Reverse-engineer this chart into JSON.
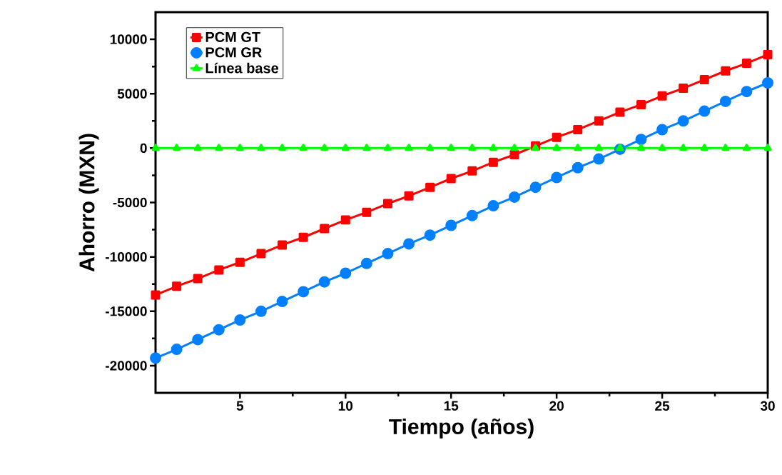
{
  "chart_data": {
    "type": "line",
    "xlabel": "Tiempo (años)",
    "ylabel": "Ahorro (MXN)",
    "x": [
      1,
      2,
      3,
      4,
      5,
      6,
      7,
      8,
      9,
      10,
      11,
      12,
      13,
      14,
      15,
      16,
      17,
      18,
      19,
      20,
      21,
      22,
      23,
      24,
      25,
      26,
      27,
      28,
      29,
      30
    ],
    "series": [
      {
        "name": "PCM GT",
        "color": "#ff0000",
        "marker": "square",
        "values": [
          -13500,
          -12700,
          -12000,
          -11200,
          -10500,
          -9700,
          -8900,
          -8200,
          -7400,
          -6600,
          -5900,
          -5100,
          -4400,
          -3600,
          -2800,
          -2100,
          -1300,
          -600,
          200,
          1000,
          1700,
          2500,
          3300,
          4000,
          4800,
          5500,
          6300,
          7100,
          7800,
          8600
        ]
      },
      {
        "name": "PCM GR",
        "color": "#0080ff",
        "marker": "circle",
        "values": [
          -19300,
          -18500,
          -17600,
          -16700,
          -15800,
          -15000,
          -14100,
          -13200,
          -12300,
          -11500,
          -10600,
          -9700,
          -8800,
          -8000,
          -7100,
          -6200,
          -5300,
          -4500,
          -3600,
          -2700,
          -1800,
          -1000,
          -100,
          800,
          1700,
          2500,
          3400,
          4300,
          5200,
          6000
        ]
      },
      {
        "name": "Línea base",
        "color": "#00ff00",
        "marker": "triangle",
        "values": [
          0,
          0,
          0,
          0,
          0,
          0,
          0,
          0,
          0,
          0,
          0,
          0,
          0,
          0,
          0,
          0,
          0,
          0,
          0,
          0,
          0,
          0,
          0,
          0,
          0,
          0,
          0,
          0,
          0,
          0
        ]
      }
    ],
    "xlim": [
      1,
      30
    ],
    "ylim": [
      -22500,
      12500
    ],
    "xticks": [
      5,
      10,
      15,
      20,
      25,
      30
    ],
    "yticks": [
      -20000,
      -15000,
      -10000,
      -5000,
      0,
      5000,
      10000
    ],
    "grid": false,
    "legend": "top left",
    "line_style": "solid"
  }
}
